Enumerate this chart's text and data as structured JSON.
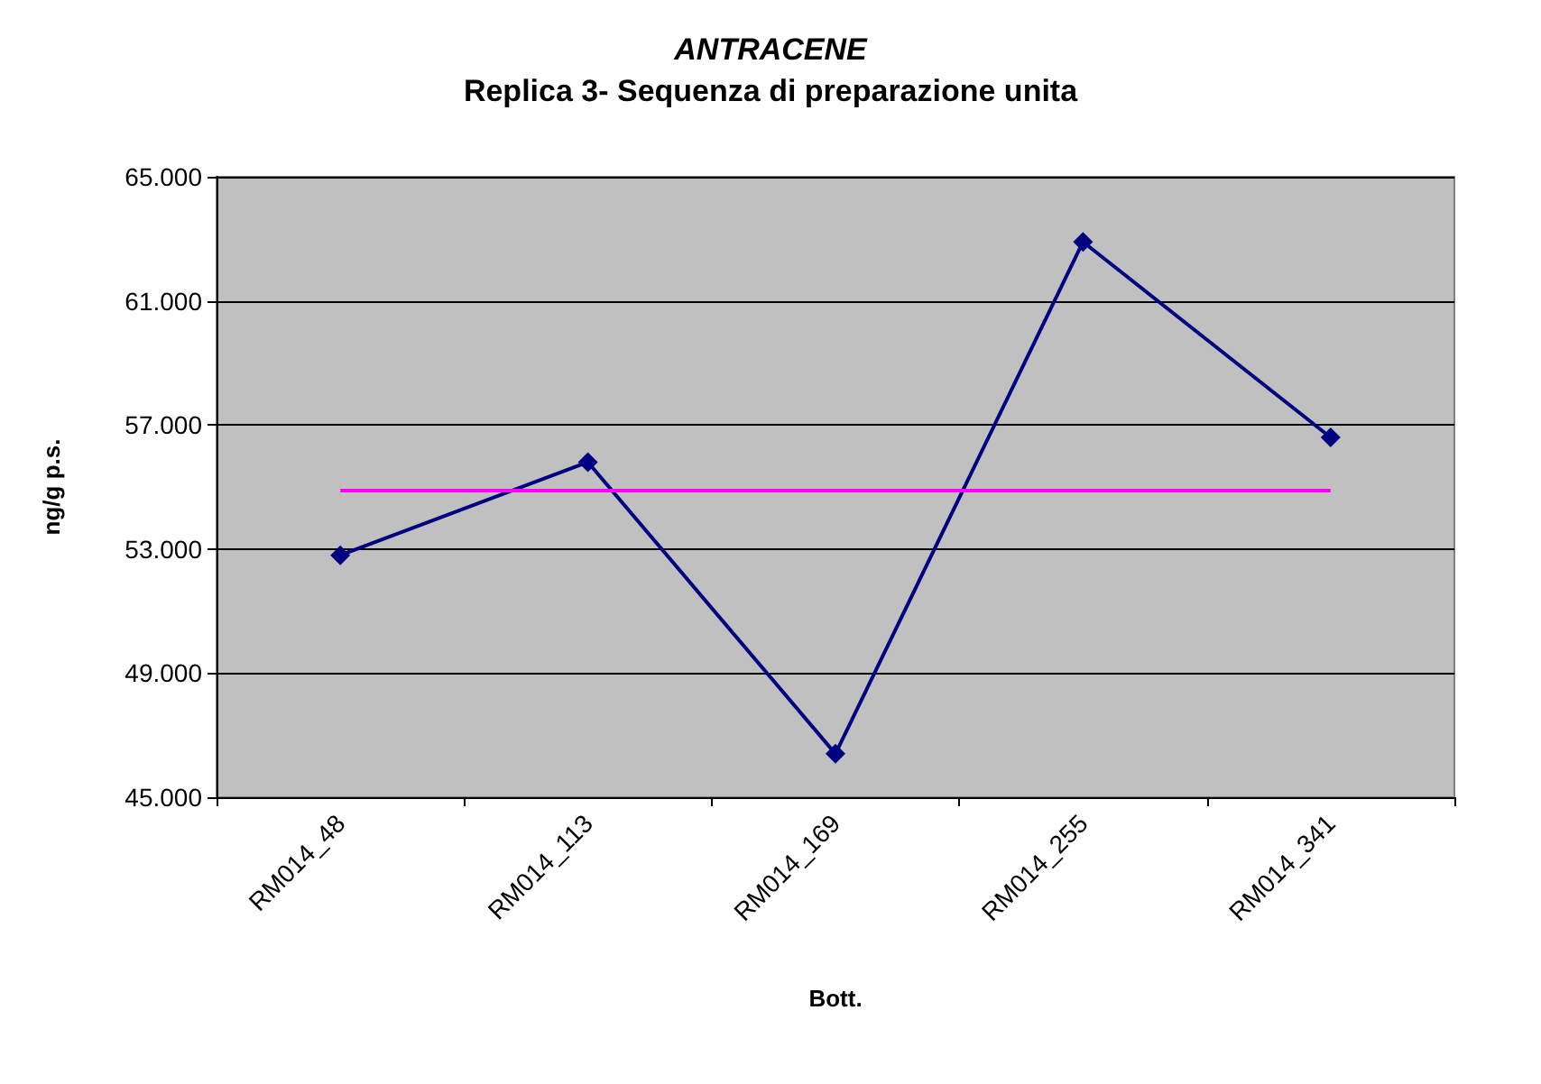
{
  "chart_data": {
    "type": "line",
    "title": "ANTRACENE",
    "subtitle": "Replica 3- Sequenza di preparazione unita",
    "xlabel": "Bott.",
    "ylabel": "ng/g p.s.",
    "categories": [
      "RM014_48",
      "RM014_113",
      "RM014_169",
      "RM014_255",
      "RM014_341"
    ],
    "series": [
      {
        "color": "#000080",
        "values": [
          52.8,
          55.8,
          46.4,
          62.9,
          56.6
        ]
      }
    ],
    "ylim": [
      45,
      65
    ],
    "yticks": [
      {
        "value": 45,
        "label": "45.000"
      },
      {
        "value": 49,
        "label": "49.000"
      },
      {
        "value": 53,
        "label": "53.000"
      },
      {
        "value": 57,
        "label": "57.000"
      },
      {
        "value": 61,
        "label": "61.000"
      },
      {
        "value": 65,
        "label": "65.000"
      }
    ],
    "ref_lines": [
      {
        "axis": "y",
        "value": 54.9,
        "color": "#ff00ff"
      }
    ],
    "grid": "y",
    "marker": "diamond",
    "line_style": "solid"
  }
}
